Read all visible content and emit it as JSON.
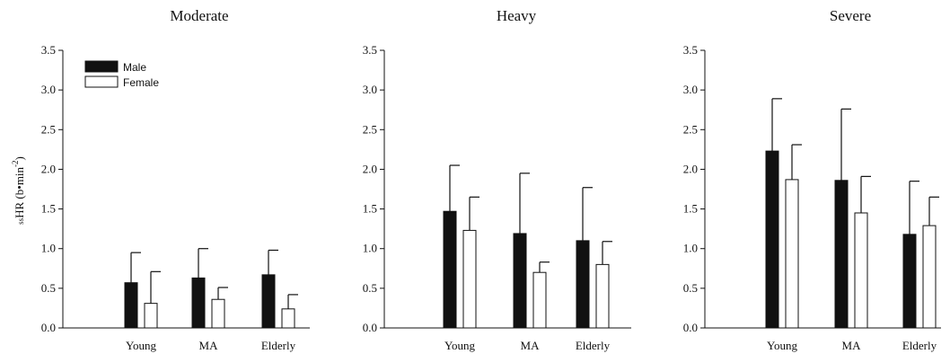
{
  "y_axis_label": {
    "prefix": "ss",
    "main": "HR (b•min",
    "exponent": "-2",
    "suffix": ")"
  },
  "legend": [
    {
      "label": "Male",
      "color": "#111111"
    },
    {
      "label": "Female",
      "color": "#ffffff"
    }
  ],
  "chart_data": [
    {
      "type": "bar",
      "title": "Moderate",
      "categories": [
        "Young",
        "MA",
        "Elderly"
      ],
      "ylim": [
        0,
        3.5
      ],
      "yticks": [
        "0.0",
        "0.5",
        "1.0",
        "1.5",
        "2.0",
        "2.5",
        "3.0",
        "3.5"
      ],
      "series": [
        {
          "name": "Male",
          "color": "#111111",
          "values": [
            0.57,
            0.63,
            0.67
          ],
          "errors": [
            0.38,
            0.37,
            0.31
          ]
        },
        {
          "name": "Female",
          "color": "#ffffff",
          "values": [
            0.31,
            0.36,
            0.24
          ],
          "errors": [
            0.4,
            0.15,
            0.18
          ]
        }
      ]
    },
    {
      "type": "bar",
      "title": "Heavy",
      "categories": [
        "Young",
        "MA",
        "Elderly"
      ],
      "ylim": [
        0,
        3.5
      ],
      "yticks": [
        "0.0",
        "0.5",
        "1.0",
        "1.5",
        "2.0",
        "2.5",
        "3.0",
        "3.5"
      ],
      "series": [
        {
          "name": "Male",
          "color": "#111111",
          "values": [
            1.47,
            1.19,
            1.1
          ],
          "errors": [
            0.58,
            0.76,
            0.67
          ]
        },
        {
          "name": "Female",
          "color": "#ffffff",
          "values": [
            1.23,
            0.7,
            0.8
          ],
          "errors": [
            0.42,
            0.13,
            0.29
          ]
        }
      ]
    },
    {
      "type": "bar",
      "title": "Severe",
      "categories": [
        "Young",
        "MA",
        "Elderly"
      ],
      "ylim": [
        0,
        3.5
      ],
      "yticks": [
        "0.0",
        "0.5",
        "1.0",
        "1.5",
        "2.0",
        "2.5",
        "3.0",
        "3.5"
      ],
      "series": [
        {
          "name": "Male",
          "color": "#111111",
          "values": [
            2.23,
            1.86,
            1.18
          ],
          "errors": [
            0.66,
            0.9,
            0.67
          ]
        },
        {
          "name": "Female",
          "color": "#ffffff",
          "values": [
            1.87,
            1.45,
            1.29
          ],
          "errors": [
            0.44,
            0.46,
            0.36
          ]
        }
      ]
    }
  ]
}
